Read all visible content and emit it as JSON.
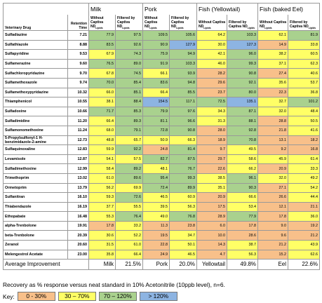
{
  "table": {
    "header": {
      "drug": "Veterinary Drug",
      "rt": "Retention Time",
      "groups": [
        "Milk",
        "Pork",
        "Fish (Yellowtail)",
        "Fish (baked Eel)"
      ],
      "sub": [
        {
          "text": "Without Captiva ND",
          "sub": "Lipids"
        },
        {
          "text": "Filtered by Captiva ND",
          "sub": "Lipids"
        }
      ]
    },
    "rows": [
      [
        "Sulfadiazine",
        7.21,
        77.9,
        97.5,
        109.5,
        105.6,
        64.2,
        103.3,
        62.1,
        81.9
      ],
      [
        "Sulfathiazole",
        8.88,
        83.5,
        92.6,
        90.9,
        127.9,
        30.0,
        127.3,
        14.9,
        33.8
      ],
      [
        "Sulfapyridine",
        9.53,
        67.9,
        74.3,
        75.9,
        94.9,
        42.1,
        96.0,
        38.2,
        60.5
      ],
      [
        "Sulfamerazine",
        9.6,
        76.5,
        89.0,
        91.9,
        103.3,
        46.0,
        99.3,
        37.1,
        62.3
      ],
      [
        "Sulfachloropyridazine",
        9.7,
        67.8,
        74.5,
        66.1,
        93.9,
        28.2,
        90.8,
        27.4,
        40.6
      ],
      [
        "Sulfamethoxazole",
        9.74,
        70.0,
        85.4,
        83.6,
        94.8,
        29.6,
        92.1,
        35.6,
        53.7
      ],
      [
        "Sulfamethoxypyridazine",
        10.32,
        66.0,
        85.1,
        66.4,
        85.5,
        23.7,
        80.0,
        22.3,
        36.8
      ],
      [
        "Thiamphenicol",
        10.55,
        38.1,
        88.4,
        154.5,
        117.1,
        72.5,
        135.1,
        32.7,
        101.2
      ],
      [
        "Sulfadoxine",
        10.66,
        71.7,
        85.3,
        79.9,
        97.6,
        34.3,
        87.1,
        32.0,
        48.4
      ],
      [
        "Sulfadimidine",
        11.2,
        66.4,
        89.3,
        81.1,
        96.6,
        31.3,
        88.1,
        28.8,
        50.5
      ],
      [
        "Sulfamonomethoxine",
        11.24,
        68.0,
        79.1,
        72.8,
        90.8,
        28.0,
        92.8,
        21.8,
        41.6
      ],
      [
        "5-Propylsulfonyl-1 H-benzimidazole-2-amine",
        12.73,
        48.8,
        65.7,
        50.9,
        66.3,
        18.9,
        70.8,
        13.1,
        18.2
      ],
      [
        "Sulfaquinoxaline",
        12.83,
        59.9,
        92.2,
        24.8,
        81.4,
        9.7,
        49.5,
        9.2,
        16.8
      ],
      [
        "Levamisole",
        12.87,
        54.1,
        57.5,
        82.7,
        87.5,
        29.7,
        58.6,
        45.9,
        61.4
      ],
      [
        "Sulfadimethoxine",
        12.99,
        58.4,
        89.2,
        48.1,
        76.7,
        22.6,
        66.2,
        20.9,
        33.3
      ],
      [
        "Trimethoprim",
        13.02,
        61.0,
        89.6,
        95.4,
        99.3,
        38.5,
        96.1,
        32.0,
        49.2
      ],
      [
        "Ormetoprim",
        13.79,
        56.2,
        69.9,
        72.4,
        89.9,
        35.1,
        90.3,
        27.1,
        54.2
      ],
      [
        "Sulfanitran",
        16.1,
        59.3,
        72.6,
        46.5,
        60.9,
        20.9,
        66.6,
        26.6,
        44.4
      ],
      [
        "Thiabendazole",
        16.19,
        37.7,
        55.5,
        39.5,
        56.3,
        17.5,
        53.4,
        12.1,
        21.1
      ],
      [
        "Ethopabate",
        16.48,
        55.3,
        76.4,
        49.0,
        76.8,
        28.9,
        77.9,
        17.8,
        36.0
      ],
      [
        "alpha-Trenbolone",
        19.91,
        17.8,
        33.2,
        11.3,
        23.8,
        6.0,
        17.8,
        9.0,
        19.2
      ],
      [
        "beta-Trenbolone",
        20.39,
        30.6,
        52.2,
        19.5,
        34.7,
        10.0,
        28.6,
        9.6,
        21.2
      ],
      [
        "Zeranol",
        20.6,
        31.5,
        61.0,
        22.8,
        50.1,
        14.3,
        38.7,
        21.2,
        43.9
      ],
      [
        "Melengestrol Acetate",
        23.0,
        35.8,
        66.4,
        24.9,
        46.5,
        4.7,
        56.3,
        15.2,
        62.6
      ]
    ],
    "average": {
      "label": "Average Improvement",
      "items": [
        {
          "label": "Milk",
          "value": 21.5,
          "value_label": "21.5%"
        },
        {
          "label": "Pork",
          "value": 20.0,
          "value_label": "20.0%"
        },
        {
          "label": "Yellowtail",
          "value": 49.8,
          "value_label": "49.8%"
        },
        {
          "label": "Eel",
          "value": 22.6,
          "value_label": "22.6%"
        }
      ]
    }
  },
  "note": "Recovery as % response versus neat standard in 10% Acetonitrile (10ppb level), n=6.",
  "key": {
    "title": "Key:",
    "items": [
      {
        "label": "0 - 30%",
        "range": [
          0,
          30
        ],
        "color": "#f8c08a"
      },
      {
        "label": "30 – 70%",
        "range": [
          30,
          70
        ],
        "color": "#ffff66"
      },
      {
        "label": "70 – 120%",
        "range": [
          70,
          120
        ],
        "color": "#a9d18e"
      },
      {
        "label": "> 120%",
        "range": [
          120,
          null
        ],
        "color": "#8db4e2"
      }
    ]
  }
}
